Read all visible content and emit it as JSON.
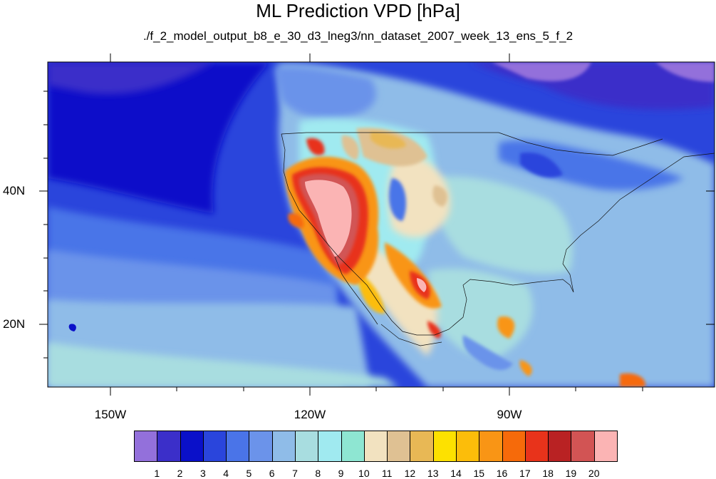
{
  "title": "ML Prediction VPD [hPa]",
  "subtitle": "./f_2_model_output_b8_e_30_d3_lneg3/nn_dataset_2007_week_13_ens_5_f_2",
  "lat_labels": [
    "40N",
    "20N"
  ],
  "lon_labels": [
    "150W",
    "120W",
    "90W"
  ],
  "colorbar": {
    "labels": [
      "1",
      "2",
      "3",
      "4",
      "5",
      "6",
      "7",
      "8",
      "9",
      "10",
      "11",
      "12",
      "13",
      "14",
      "15",
      "16",
      "17",
      "18",
      "19",
      "20"
    ],
    "colors": [
      "#9370db",
      "#3b2fc9",
      "#0a10c9",
      "#2a45dc",
      "#4a74e8",
      "#6b93ea",
      "#8fbce8",
      "#a8dde0",
      "#a0eaf0",
      "#8ee6d2",
      "#f2e2c0",
      "#dfc193",
      "#e8b855",
      "#fde100",
      "#fcbd0a",
      "#f99515",
      "#f66a0a",
      "#e8331b",
      "#b92223",
      "#d25454",
      "#fbb4b4"
    ]
  },
  "map": {
    "ocean_color": "#2a45dc",
    "land_color": "#8fbce8"
  }
}
